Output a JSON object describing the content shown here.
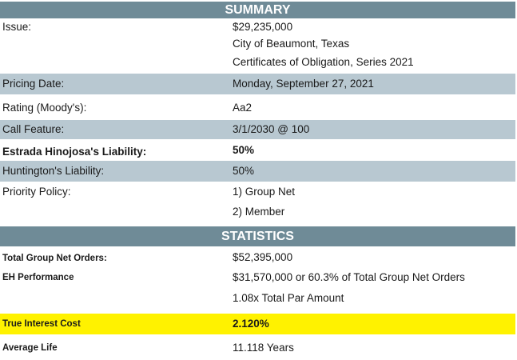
{
  "summary": {
    "header": "SUMMARY",
    "issue_label": "Issue:",
    "issue_lines": [
      "$29,235,000",
      "City of Beaumont, Texas",
      "Certificates of Obligation, Series 2021"
    ],
    "pricing_date_label": "Pricing Date:",
    "pricing_date": "Monday, September 27, 2021",
    "rating_label": "Rating (Moody's):",
    "rating": "Aa2",
    "call_label": "Call Feature:",
    "call": "3/1/2030 @ 100",
    "eh_label": "Estrada Hinojosa's Liability:",
    "eh_value": "50%",
    "hunt_label": "Huntington's Liability:",
    "hunt_value": "50%",
    "priority_label": "Priority Policy:",
    "priority_lines": [
      "1) Group Net",
      "2) Member"
    ]
  },
  "statistics": {
    "header": "STATISTICS",
    "tgno_label": "Total Group Net Orders:",
    "tgno_value": "$52,395,000",
    "ehp_label": "EH Performance",
    "ehp_lines": [
      "$31,570,000 or 60.3% of Total Group Net Orders",
      "1.08x Total Par Amount"
    ],
    "tic_label": "True Interest Cost",
    "tic_value": "2.120%",
    "avg_label": "Average Life",
    "avg_value": "11.118 Years"
  },
  "colors": {
    "header_bg": "#6f8b97",
    "shade_bg": "#b8c8d1",
    "highlight_bg": "#fff200"
  }
}
